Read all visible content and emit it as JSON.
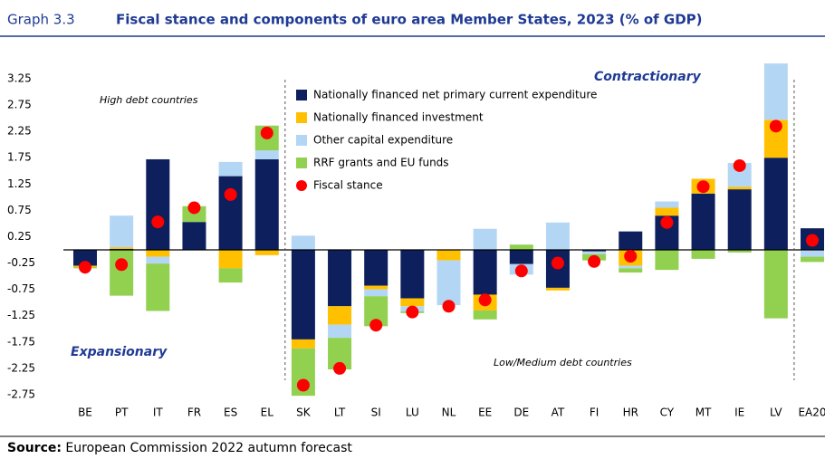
{
  "graph_label": "Graph 3.3",
  "source": {
    "label": "Source:",
    "text": "European Commission 2022 autumn forecast"
  },
  "chart_data": {
    "type": "bar",
    "title": "Fiscal stance and components of euro area Member States, 2023 (% of GDP)",
    "categories": [
      "BE",
      "PT",
      "IT",
      "FR",
      "ES",
      "EL",
      "SK",
      "LT",
      "SI",
      "LU",
      "NL",
      "EE",
      "DE",
      "AT",
      "FI",
      "HR",
      "CY",
      "MT",
      "IE",
      "LV",
      "EA20"
    ],
    "series": [
      {
        "name": "Nationally financed net primary current expenditure",
        "color": "#0d1f5c",
        "values": [
          -0.3,
          0.02,
          1.72,
          0.53,
          1.4,
          1.72,
          -1.7,
          -1.07,
          -0.68,
          -0.92,
          0,
          -0.85,
          -0.27,
          -0.72,
          -0.03,
          0.35,
          0.65,
          1.07,
          1.15,
          1.75,
          0.41
        ]
      },
      {
        "name": "Nationally financed investment",
        "color": "#ffc000",
        "values": [
          -0.03,
          0.03,
          -0.13,
          0,
          -0.35,
          -0.1,
          -0.17,
          -0.35,
          -0.07,
          -0.15,
          -0.2,
          -0.3,
          0,
          -0.05,
          0,
          -0.3,
          0.15,
          0.28,
          0.05,
          0.72,
          0
        ]
      },
      {
        "name": "Other capital expenditure",
        "color": "#b4d6f5",
        "values": [
          0,
          0.6,
          -0.13,
          0,
          0.27,
          0.17,
          0.27,
          -0.25,
          -0.13,
          -0.1,
          -0.85,
          0.4,
          -0.2,
          0.52,
          -0.05,
          -0.05,
          0.12,
          0,
          0.45,
          1.07,
          -0.13
        ]
      },
      {
        "name": "RRF grants and EU funds",
        "color": "#92d050",
        "values": [
          -0.02,
          -0.87,
          -0.9,
          0.3,
          -0.27,
          0.47,
          -0.9,
          -0.6,
          -0.57,
          -0.03,
          0,
          -0.17,
          0.1,
          0,
          -0.12,
          -0.08,
          -0.38,
          -0.17,
          -0.05,
          -1.3,
          -0.1
        ]
      },
      {
        "name": "Fiscal stance",
        "color": "#ff0000",
        "type": "scatter",
        "values": [
          -0.33,
          -0.28,
          0.53,
          0.8,
          1.05,
          2.22,
          -2.57,
          -2.25,
          -1.43,
          -1.18,
          -1.07,
          -0.95,
          -0.4,
          -0.25,
          -0.22,
          -0.12,
          0.52,
          1.2,
          1.6,
          2.35,
          0.18
        ]
      }
    ],
    "ylim": [
      -2.85,
      3.6
    ],
    "yticks": [
      3.25,
      2.75,
      2.25,
      1.75,
      1.25,
      0.75,
      0.25,
      -0.25,
      -0.75,
      -1.25,
      -1.75,
      -2.25,
      -2.75
    ],
    "annotations": [
      "High debt countries",
      "Contractionary",
      "Expansionary",
      "Low/Medium debt countries"
    ]
  }
}
